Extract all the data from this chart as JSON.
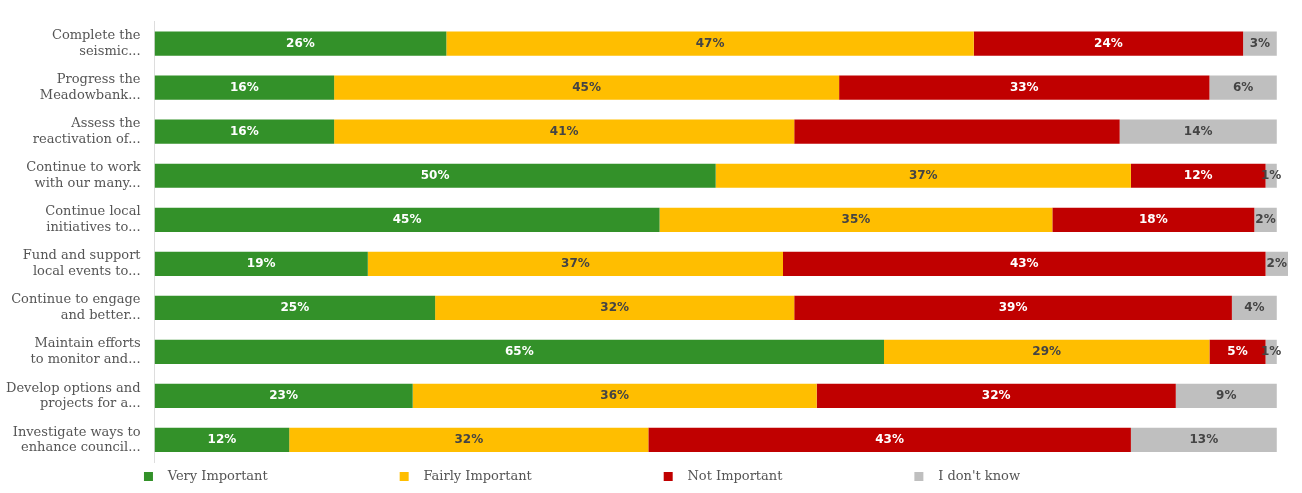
{
  "chart_data": {
    "type": "bar",
    "orientation": "horizontal",
    "stacked": true,
    "legend": "bottom",
    "categories": [
      "Complete the seismic...",
      "Progress the Meadowbank...",
      "Assess the reactivation of...",
      "Continue to work with our many...",
      "Continue local initiatives to...",
      "Fund and support local events to...",
      "Continue to engage and better...",
      "Maintain efforts to monitor and...",
      "Develop options and projects for a...",
      "Investigate ways to enhance council..."
    ],
    "series": [
      {
        "name": "Very Important",
        "color": "#339129",
        "values": [
          26,
          16,
          16,
          50,
          45,
          19,
          25,
          65,
          23,
          12
        ],
        "value_labels": [
          "26%",
          "16%",
          "16%",
          "50%",
          "45%",
          "19%",
          "25%",
          "65%",
          "23%",
          "12%"
        ]
      },
      {
        "name": "Fairly Important",
        "color": "#ffbe00",
        "values": [
          47,
          45,
          41,
          37,
          35,
          37,
          32,
          29,
          36,
          32
        ],
        "value_labels": [
          "47%",
          "45%",
          "41%",
          "37%",
          "35%",
          "37%",
          "32%",
          "29%",
          "36%",
          "32%"
        ]
      },
      {
        "name": "Not Important",
        "color": "#c00000",
        "values": [
          24,
          33,
          29,
          12,
          18,
          43,
          39,
          5,
          32,
          43
        ],
        "value_labels": [
          "24%",
          "33%",
          null,
          "12%",
          "18%",
          "43%",
          "39%",
          "5%",
          "32%",
          "43%"
        ]
      },
      {
        "name": "I don't know",
        "color": "#bfbfbf",
        "values": [
          3,
          6,
          14,
          1,
          2,
          2,
          4,
          1,
          9,
          13
        ],
        "value_labels": [
          "3%",
          "6%",
          "14%",
          "1%",
          "2%",
          "2%",
          "4%",
          "1%",
          "9%",
          "13%"
        ]
      }
    ]
  }
}
